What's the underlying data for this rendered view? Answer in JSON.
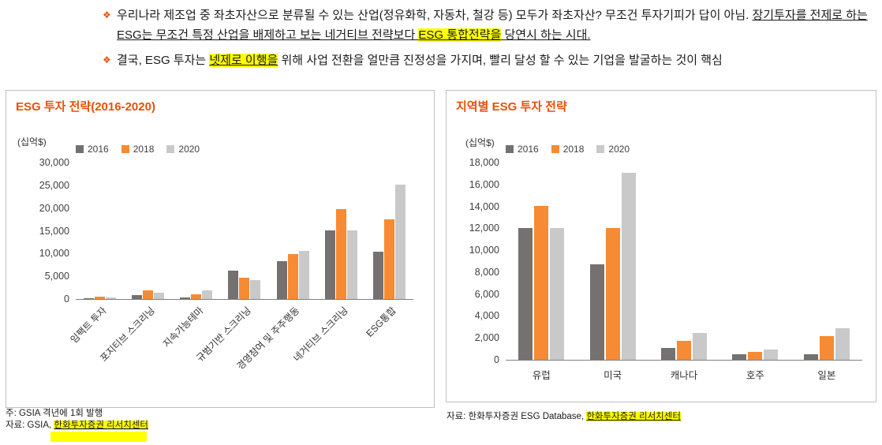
{
  "bullets": [
    {
      "marker": "❖",
      "segments": [
        {
          "text": "우리나라 제조업 중 좌초자산으로 분류될 수 있는 산업(정유화학, 자동차, 철강 등) 모두가 좌초자산? 무조건 투자기피가 답이 아님. ",
          "style": "plain"
        },
        {
          "text": "장기투자를 전제로 하는 ESG는 무조건 특정 산업을 배제하고 보는 네거티브 전략보다 ",
          "style": "underline"
        },
        {
          "text": "ESG 통합전략을",
          "style": "highlight underline"
        },
        {
          "text": " 당연시 하는 시대.",
          "style": "underline"
        }
      ]
    },
    {
      "marker": "❖",
      "segments": [
        {
          "text": "결국, ESG 투자는 ",
          "style": "plain"
        },
        {
          "text": "넷제로 이행을",
          "style": "highlight underline"
        },
        {
          "text": " 위해 사업 전환을 얼만큼 진정성을 가지며, 빨리 달성 할 수 있는 기업을 발굴하는 것이 핵심",
          "style": "plain"
        }
      ]
    }
  ],
  "chart_data": [
    {
      "type": "bar",
      "title": "ESG 투자 전략(2016-2020)",
      "unit_label": "(십억$)",
      "ylim": [
        0,
        30000
      ],
      "ytick_step": 5000,
      "grid": false,
      "legend_position": "top",
      "categories": [
        "임팩트 투자",
        "포지티브 스크리닝",
        "지속가능테마",
        "규범기반 스크리닝",
        "경영참여 및 주주행동",
        "네거티브 스크리닝",
        "ESG통합"
      ],
      "series": [
        {
          "name": "2016",
          "color": "#767171",
          "values": [
            248,
            818,
            276,
            6195,
            8385,
            15064,
            10353
          ]
        },
        {
          "name": "2018",
          "color": "#F68B33",
          "values": [
            444,
            1842,
            1018,
            4679,
            9835,
            19771,
            17544
          ]
        },
        {
          "name": "2020",
          "color": "#C9C9C9",
          "values": [
            352,
            1384,
            1948,
            4140,
            10504,
            15030,
            25195
          ]
        }
      ]
    },
    {
      "type": "bar",
      "title": "지역별 ESG 투자 전략",
      "unit_label": "(십억$)",
      "ylim": [
        0,
        18000
      ],
      "ytick_step": 2000,
      "grid": false,
      "legend_position": "top",
      "categories": [
        "유럽",
        "미국",
        "캐나다",
        "호주",
        "일본"
      ],
      "series": [
        {
          "name": "2016",
          "color": "#767171",
          "values": [
            12040,
            8723,
            1086,
            516,
            474
          ]
        },
        {
          "name": "2018",
          "color": "#F68B33",
          "values": [
            14075,
            11995,
            1699,
            734,
            2180
          ]
        },
        {
          "name": "2020",
          "color": "#C9C9C9",
          "values": [
            12017,
            17081,
            2423,
            906,
            2874
          ]
        }
      ]
    }
  ],
  "notes": {
    "left_lines": [
      {
        "segments": [
          {
            "text": "주: GSIA 격년에 1회 발행",
            "style": "plain"
          }
        ]
      },
      {
        "segments": [
          {
            "text": "자료: GSIA, ",
            "style": "plain"
          },
          {
            "text": "한화투자증권 리서치센터",
            "style": "highlight underline"
          }
        ]
      }
    ],
    "right_lines": [
      {
        "segments": [
          {
            "text": "자료: 한화투자증권 ESG Database, ",
            "style": "plain"
          },
          {
            "text": "한화투자증권 리서치센터",
            "style": "highlight underline"
          }
        ]
      }
    ]
  },
  "theme": {
    "accent_orange": "#E8500A",
    "highlight_yellow": "#FFFF00",
    "bar_2016": "#767171",
    "bar_2018": "#F68B33",
    "bar_2020": "#C9C9C9",
    "axis_color": "#808080"
  }
}
